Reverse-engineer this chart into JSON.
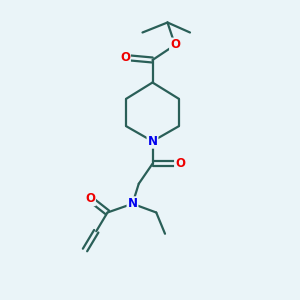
{
  "bg_color": "#eaf4f8",
  "bond_color": "#2a5f58",
  "atom_N_color": "#0000ee",
  "atom_O_color": "#ee0000",
  "line_width": 1.6,
  "font_size": 8.5,
  "figsize": [
    3.0,
    3.0
  ],
  "dpi": 100,
  "xlim": [
    2.0,
    9.0
  ],
  "ylim": [
    0.5,
    12.5
  ]
}
